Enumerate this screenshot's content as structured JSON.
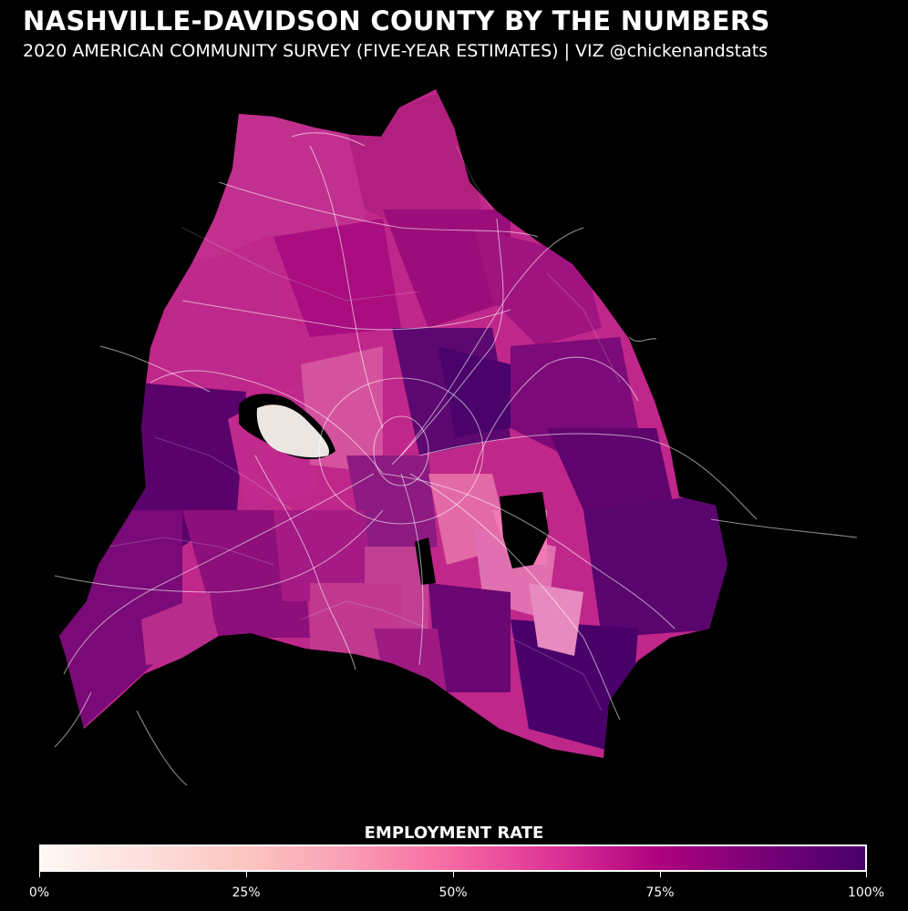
{
  "header": {
    "title": "NASHVILLE-DAVIDSON COUNTY BY THE NUMBERS",
    "subtitle": "2020 AMERICAN COMMUNITY SURVEY (FIVE-YEAR ESTIMATES) | VIZ @chickenandstats"
  },
  "legend": {
    "title": "EMPLOYMENT RATE",
    "ticks": [
      "0%",
      "25%",
      "50%",
      "75%",
      "100%"
    ],
    "colors": [
      "#fff7f3",
      "#fcc5c0",
      "#f768a1",
      "#ae017e",
      "#49006a"
    ]
  },
  "map": {
    "background": "#000000",
    "road_color": "#ffffff",
    "no_data_color": "#000000"
  }
}
